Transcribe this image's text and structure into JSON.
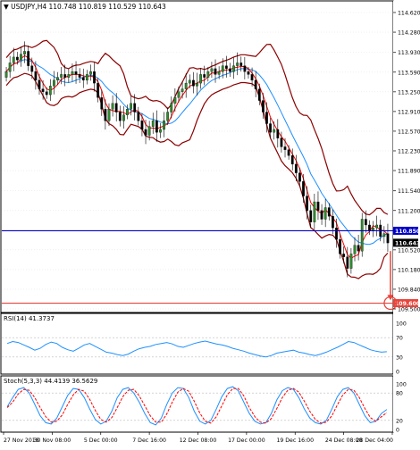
{
  "header": {
    "symbol_line": "USDJPY,H4  110.748 110.819 110.529 110.643"
  },
  "chart_data": {
    "type": "candlestick",
    "symbol": "USDJPY",
    "timeframe": "H4",
    "ohlc_last": {
      "open": 110.748,
      "high": 110.819,
      "low": 110.529,
      "close": 110.643
    },
    "price_axis": {
      "min": 109.5,
      "max": 114.62,
      "ticks": [
        "114.620",
        "114.280",
        "113.930",
        "113.590",
        "113.250",
        "112.910",
        "112.570",
        "112.230",
        "111.890",
        "111.540",
        "111.200",
        "110.520",
        "110.180",
        "109.840",
        "109.500"
      ]
    },
    "time_axis": {
      "labels": [
        "27 Nov 2018",
        "30 Nov 08:00",
        "5 Dec 00:00",
        "7 Dec 16:00",
        "12 Dec 08:00",
        "17 Dec 00:00",
        "19 Dec 16:00",
        "24 Dec 08:00",
        "28 Dec 04:00"
      ]
    },
    "closes": [
      113.6,
      113.75,
      113.85,
      113.8,
      113.9,
      113.95,
      113.7,
      113.6,
      113.45,
      113.3,
      113.25,
      113.2,
      113.35,
      113.45,
      113.5,
      113.55,
      113.5,
      113.55,
      113.6,
      113.55,
      113.5,
      113.45,
      113.55,
      113.6,
      113.4,
      113.15,
      112.95,
      112.75,
      112.95,
      113.05,
      112.9,
      112.75,
      112.85,
      112.95,
      113.05,
      112.9,
      112.75,
      112.6,
      112.5,
      112.65,
      112.75,
      112.55,
      112.6,
      112.75,
      112.9,
      113.05,
      113.15,
      113.25,
      113.3,
      113.4,
      113.45,
      113.35,
      113.4,
      113.55,
      113.5,
      113.6,
      113.65,
      113.55,
      113.6,
      113.7,
      113.65,
      113.6,
      113.7,
      113.75,
      113.7,
      113.6,
      113.55,
      113.45,
      113.3,
      113.1,
      112.9,
      112.7,
      112.55,
      112.6,
      112.45,
      112.3,
      112.25,
      112.15,
      112.0,
      111.85,
      111.7,
      111.45,
      111.2,
      111.0,
      111.35,
      111.2,
      111.05,
      111.25,
      111.1,
      110.9,
      110.7,
      110.45,
      110.4,
      110.2,
      110.45,
      110.6,
      110.5,
      111.05,
      110.95,
      110.85,
      110.9,
      110.95,
      110.75,
      110.8,
      110.64
    ],
    "indicator_lines": [
      {
        "name": "Bollinger upper",
        "color": "#8b0000"
      },
      {
        "name": "Bollinger lower",
        "color": "#8b0000"
      },
      {
        "name": "Bollinger middle",
        "color": "#1e90ff"
      },
      {
        "name": "Fast MA",
        "color": "#ff0000"
      }
    ],
    "levels": [
      {
        "value": 110.85,
        "label": "110.850",
        "color": "#0000c8",
        "type": "horizontal line"
      },
      {
        "value": 109.6,
        "label": "109.600",
        "color": "#e8453c",
        "type": "target line"
      },
      {
        "value": 110.643,
        "label": "110.643",
        "color": "#000000",
        "type": "current price"
      }
    ],
    "projection_arrow": {
      "from": 110.5,
      "to": 109.65,
      "color": "#e8453c"
    },
    "rsi": {
      "title": "RSI(14) 41.3737",
      "range": [
        0,
        100
      ],
      "ticks": [
        "100",
        "70",
        "30",
        "0"
      ],
      "values": [
        58,
        62,
        60,
        55,
        50,
        44,
        48,
        56,
        61,
        58,
        50,
        45,
        42,
        48,
        55,
        58,
        52,
        46,
        40,
        38,
        35,
        33,
        36,
        42,
        47,
        50,
        52,
        56,
        58,
        60,
        57,
        52,
        50,
        54,
        58,
        61,
        63,
        60,
        57,
        55,
        52,
        48,
        45,
        42,
        38,
        35,
        32,
        30,
        33,
        38,
        40,
        42,
        44,
        40,
        38,
        35,
        33,
        36,
        40,
        45,
        50,
        56,
        62,
        60,
        55,
        50,
        45,
        42,
        40,
        41
      ]
    },
    "stoch": {
      "title": "Stoch(5,3,3) 44.4139 36.5629",
      "range": [
        0,
        100
      ],
      "ticks": [
        "100",
        "80",
        "20",
        "0"
      ],
      "main": [
        50,
        70,
        88,
        92,
        80,
        55,
        30,
        15,
        12,
        25,
        50,
        75,
        90,
        88,
        70,
        45,
        22,
        12,
        18,
        40,
        70,
        88,
        92,
        80,
        60,
        35,
        15,
        10,
        25,
        55,
        80,
        92,
        90,
        70,
        40,
        18,
        12,
        20,
        45,
        72,
        90,
        94,
        85,
        60,
        35,
        18,
        12,
        15,
        35,
        65,
        85,
        92,
        88,
        70,
        45,
        25,
        15,
        12,
        20,
        45,
        72,
        88,
        92,
        80,
        55,
        30,
        15,
        18,
        35,
        44
      ],
      "signal": [
        48,
        60,
        78,
        88,
        86,
        70,
        48,
        28,
        16,
        18,
        32,
        55,
        76,
        88,
        84,
        66,
        42,
        22,
        16,
        26,
        48,
        72,
        86,
        88,
        74,
        52,
        30,
        16,
        16,
        34,
        60,
        82,
        90,
        84,
        62,
        36,
        18,
        14,
        28,
        52,
        76,
        90,
        90,
        74,
        48,
        28,
        16,
        14,
        24,
        46,
        70,
        86,
        90,
        82,
        62,
        40,
        22,
        14,
        16,
        30,
        54,
        76,
        88,
        86,
        70,
        46,
        26,
        18,
        28,
        37
      ]
    }
  }
}
